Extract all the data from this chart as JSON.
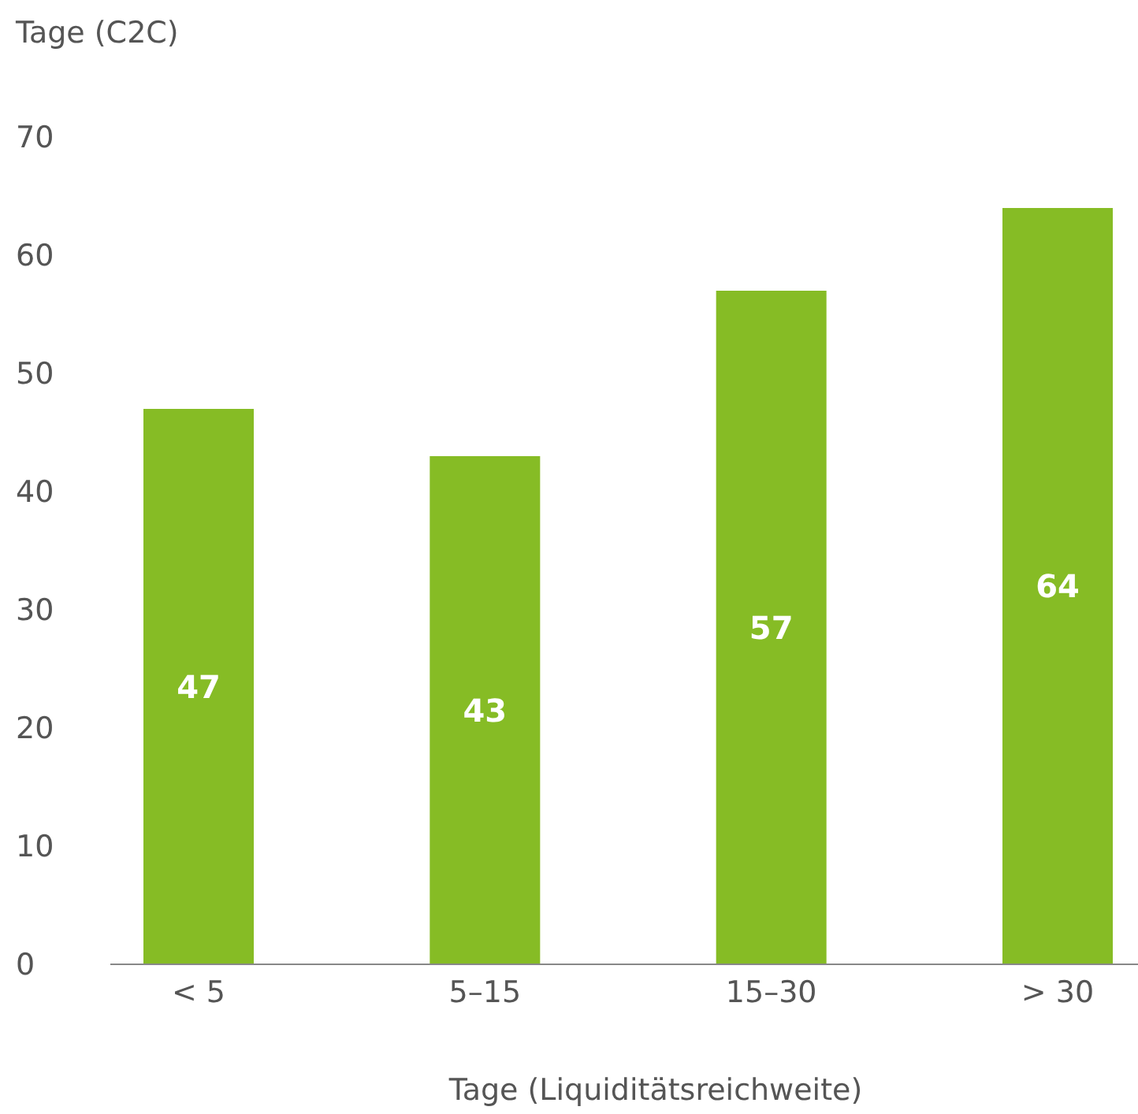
{
  "chart_data": {
    "type": "bar",
    "ylabel": "Tage (C2C)",
    "xlabel": "Tage (Liquiditätsreichweite)",
    "categories": [
      "< 5",
      "5–15",
      "15–30",
      "> 30"
    ],
    "values": [
      47,
      43,
      57,
      64
    ],
    "color": "#86bc25",
    "ylim": [
      0,
      70
    ],
    "yticks": [
      0,
      10,
      20,
      30,
      40,
      50,
      60,
      70
    ],
    "grid": false,
    "data_labels": true
  }
}
